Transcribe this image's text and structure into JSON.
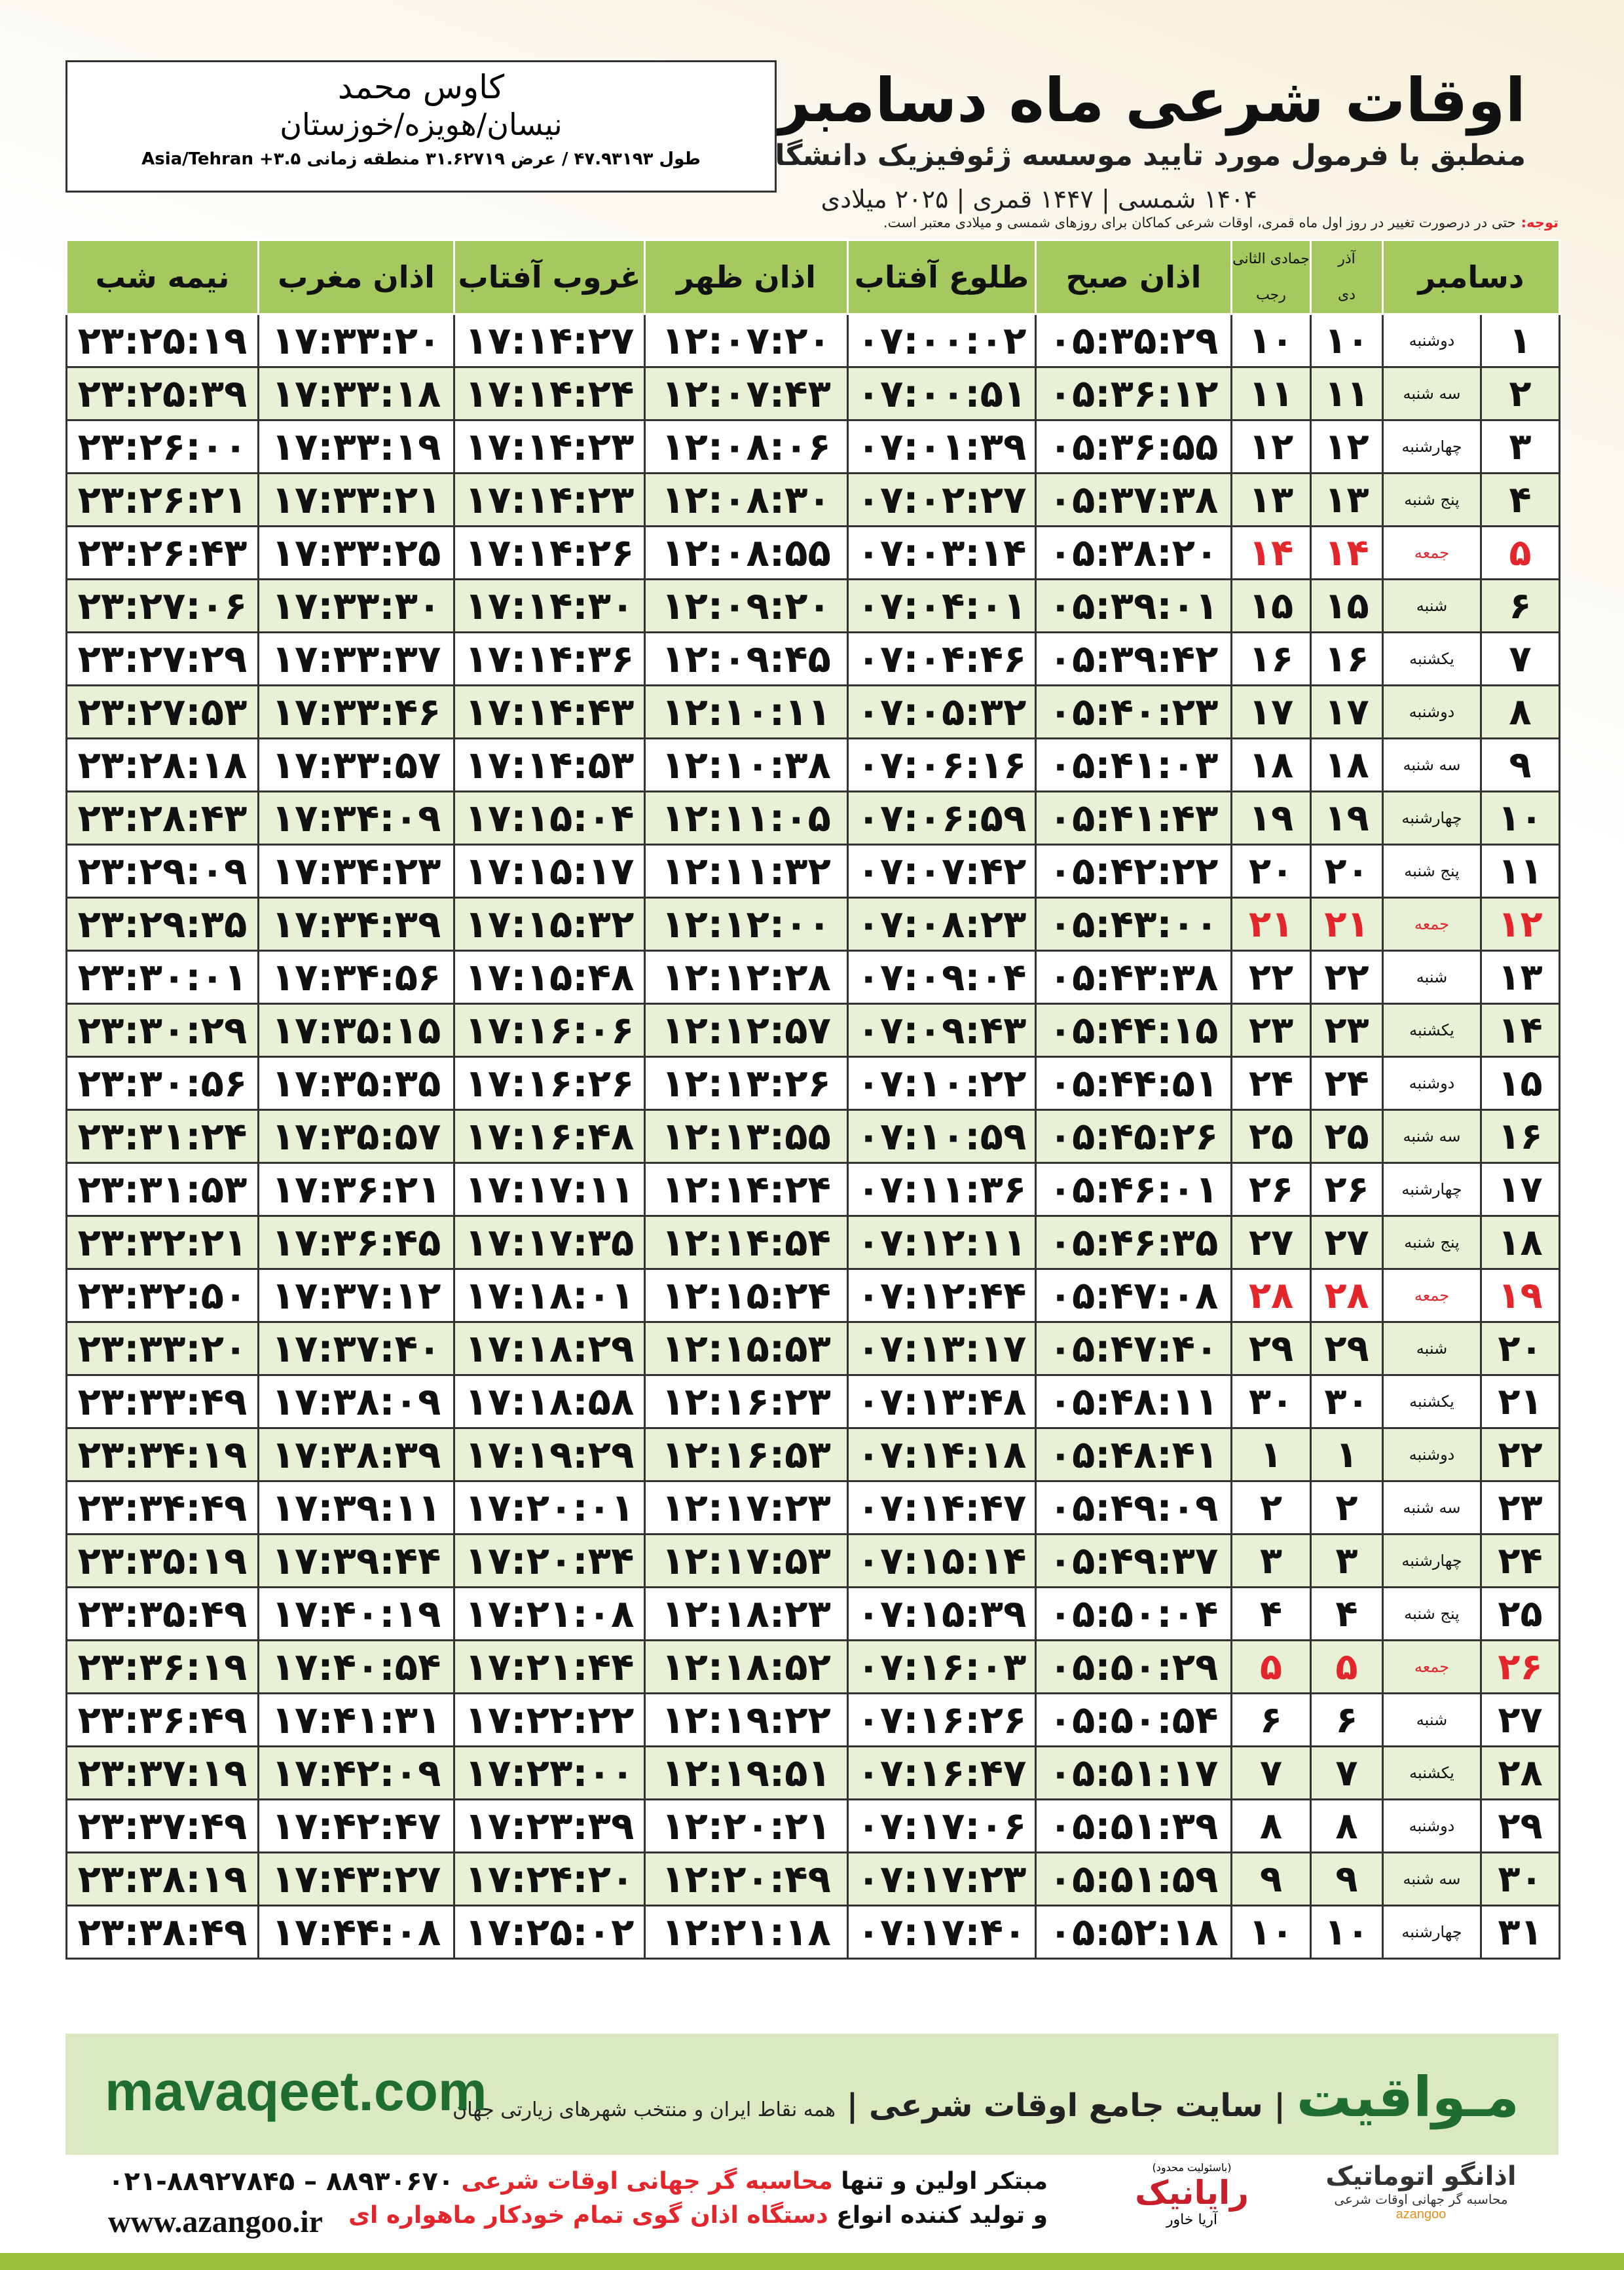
{
  "header": {
    "title": "اوقات شرعی ماه دسامبر",
    "subtitle": "منطبق با فرمول مورد تایید موسسه ژئوفیزیک دانشگاه تهران",
    "dates": "۱۴۰۴ شمسی | ۱۴۴۷ قمری | ۲۰۲۵ میلادی"
  },
  "location": {
    "name": "کاوس محمد",
    "place": "نیسان/هویزه/خوزستان",
    "coords": "طول ۴۷.۹۳۱۹۳ / عرض ۳۱.۶۲۷۱۹ منطقه زمانی ۳.۵+ Asia/Tehran"
  },
  "note": {
    "label": "توجه:",
    "text": "حتی در درصورت تغییر در روز اول ماه قمری، اوقات شرعی کماکان برای روزهای شمسی و میلادی معتبر است."
  },
  "table": {
    "month": "دسامبر",
    "jalali_months": [
      "آذر",
      "دی"
    ],
    "hijri_months": [
      "جمادی الثانی",
      "رجب"
    ],
    "time_headers": [
      "اذان صبح",
      "طلوع آفتاب",
      "اذان ظهر",
      "غروب آفتاب",
      "اذان مغرب",
      "نیمه شب"
    ],
    "rows": [
      {
        "day": "۱",
        "weekday": "دوشنبه",
        "jalali": "۱۰",
        "hijri": "۱۰",
        "times": [
          "۰۵:۳۵:۲۹",
          "۰۷:۰۰:۰۲",
          "۱۲:۰۷:۲۰",
          "۱۷:۱۴:۲۷",
          "۱۷:۳۳:۲۰",
          "۲۳:۲۵:۱۹"
        ],
        "color": "#111111"
      },
      {
        "day": "۲",
        "weekday": "سه شنبه",
        "jalali": "۱۱",
        "hijri": "۱۱",
        "times": [
          "۰۵:۳۶:۱۲",
          "۰۷:۰۰:۵۱",
          "۱۲:۰۷:۴۳",
          "۱۷:۱۴:۲۴",
          "۱۷:۳۳:۱۸",
          "۲۳:۲۵:۳۹"
        ],
        "color": "#111111"
      },
      {
        "day": "۳",
        "weekday": "چهارشنبه",
        "jalali": "۱۲",
        "hijri": "۱۲",
        "times": [
          "۰۵:۳۶:۵۵",
          "۰۷:۰۱:۳۹",
          "۱۲:۰۸:۰۶",
          "۱۷:۱۴:۲۳",
          "۱۷:۳۳:۱۹",
          "۲۳:۲۶:۰۰"
        ],
        "color": "#111111"
      },
      {
        "day": "۴",
        "weekday": "پنج شنبه",
        "jalali": "۱۳",
        "hijri": "۱۳",
        "times": [
          "۰۵:۳۷:۳۸",
          "۰۷:۰۲:۲۷",
          "۱۲:۰۸:۳۰",
          "۱۷:۱۴:۲۳",
          "۱۷:۳۳:۲۱",
          "۲۳:۲۶:۲۱"
        ],
        "color": "#111111"
      },
      {
        "day": "۵",
        "weekday": "جمعه",
        "jalali": "۱۴",
        "hijri": "۱۴",
        "times": [
          "۰۵:۳۸:۲۰",
          "۰۷:۰۳:۱۴",
          "۱۲:۰۸:۵۵",
          "۱۷:۱۴:۲۶",
          "۱۷:۳۳:۲۵",
          "۲۳:۲۶:۴۳"
        ],
        "color": "#e3262b"
      },
      {
        "day": "۶",
        "weekday": "شنبه",
        "jalali": "۱۵",
        "hijri": "۱۵",
        "times": [
          "۰۵:۳۹:۰۱",
          "۰۷:۰۴:۰۱",
          "۱۲:۰۹:۲۰",
          "۱۷:۱۴:۳۰",
          "۱۷:۳۳:۳۰",
          "۲۳:۲۷:۰۶"
        ],
        "color": "#111111"
      },
      {
        "day": "۷",
        "weekday": "یکشنبه",
        "jalali": "۱۶",
        "hijri": "۱۶",
        "times": [
          "۰۵:۳۹:۴۲",
          "۰۷:۰۴:۴۶",
          "۱۲:۰۹:۴۵",
          "۱۷:۱۴:۳۶",
          "۱۷:۳۳:۳۷",
          "۲۳:۲۷:۲۹"
        ],
        "color": "#111111"
      },
      {
        "day": "۸",
        "weekday": "دوشنبه",
        "jalali": "۱۷",
        "hijri": "۱۷",
        "times": [
          "۰۵:۴۰:۲۳",
          "۰۷:۰۵:۳۲",
          "۱۲:۱۰:۱۱",
          "۱۷:۱۴:۴۳",
          "۱۷:۳۳:۴۶",
          "۲۳:۲۷:۵۳"
        ],
        "color": "#111111"
      },
      {
        "day": "۹",
        "weekday": "سه شنبه",
        "jalali": "۱۸",
        "hijri": "۱۸",
        "times": [
          "۰۵:۴۱:۰۳",
          "۰۷:۰۶:۱۶",
          "۱۲:۱۰:۳۸",
          "۱۷:۱۴:۵۳",
          "۱۷:۳۳:۵۷",
          "۲۳:۲۸:۱۸"
        ],
        "color": "#111111"
      },
      {
        "day": "۱۰",
        "weekday": "چهارشنبه",
        "jalali": "۱۹",
        "hijri": "۱۹",
        "times": [
          "۰۵:۴۱:۴۳",
          "۰۷:۰۶:۵۹",
          "۱۲:۱۱:۰۵",
          "۱۷:۱۵:۰۴",
          "۱۷:۳۴:۰۹",
          "۲۳:۲۸:۴۳"
        ],
        "color": "#111111"
      },
      {
        "day": "۱۱",
        "weekday": "پنج شنبه",
        "jalali": "۲۰",
        "hijri": "۲۰",
        "times": [
          "۰۵:۴۲:۲۲",
          "۰۷:۰۷:۴۲",
          "۱۲:۱۱:۳۲",
          "۱۷:۱۵:۱۷",
          "۱۷:۳۴:۲۳",
          "۲۳:۲۹:۰۹"
        ],
        "color": "#111111"
      },
      {
        "day": "۱۲",
        "weekday": "جمعه",
        "jalali": "۲۱",
        "hijri": "۲۱",
        "times": [
          "۰۵:۴۳:۰۰",
          "۰۷:۰۸:۲۳",
          "۱۲:۱۲:۰۰",
          "۱۷:۱۵:۳۲",
          "۱۷:۳۴:۳۹",
          "۲۳:۲۹:۳۵"
        ],
        "color": "#e3262b"
      },
      {
        "day": "۱۳",
        "weekday": "شنبه",
        "jalali": "۲۲",
        "hijri": "۲۲",
        "times": [
          "۰۵:۴۳:۳۸",
          "۰۷:۰۹:۰۴",
          "۱۲:۱۲:۲۸",
          "۱۷:۱۵:۴۸",
          "۱۷:۳۴:۵۶",
          "۲۳:۳۰:۰۱"
        ],
        "color": "#111111"
      },
      {
        "day": "۱۴",
        "weekday": "یکشنبه",
        "jalali": "۲۳",
        "hijri": "۲۳",
        "times": [
          "۰۵:۴۴:۱۵",
          "۰۷:۰۹:۴۳",
          "۱۲:۱۲:۵۷",
          "۱۷:۱۶:۰۶",
          "۱۷:۳۵:۱۵",
          "۲۳:۳۰:۲۹"
        ],
        "color": "#111111"
      },
      {
        "day": "۱۵",
        "weekday": "دوشنبه",
        "jalali": "۲۴",
        "hijri": "۲۴",
        "times": [
          "۰۵:۴۴:۵۱",
          "۰۷:۱۰:۲۲",
          "۱۲:۱۳:۲۶",
          "۱۷:۱۶:۲۶",
          "۱۷:۳۵:۳۵",
          "۲۳:۳۰:۵۶"
        ],
        "color": "#111111"
      },
      {
        "day": "۱۶",
        "weekday": "سه شنبه",
        "jalali": "۲۵",
        "hijri": "۲۵",
        "times": [
          "۰۵:۴۵:۲۶",
          "۰۷:۱۰:۵۹",
          "۱۲:۱۳:۵۵",
          "۱۷:۱۶:۴۸",
          "۱۷:۳۵:۵۷",
          "۲۳:۳۱:۲۴"
        ],
        "color": "#111111"
      },
      {
        "day": "۱۷",
        "weekday": "چهارشنبه",
        "jalali": "۲۶",
        "hijri": "۲۶",
        "times": [
          "۰۵:۴۶:۰۱",
          "۰۷:۱۱:۳۶",
          "۱۲:۱۴:۲۴",
          "۱۷:۱۷:۱۱",
          "۱۷:۳۶:۲۱",
          "۲۳:۳۱:۵۳"
        ],
        "color": "#111111"
      },
      {
        "day": "۱۸",
        "weekday": "پنج شنبه",
        "jalali": "۲۷",
        "hijri": "۲۷",
        "times": [
          "۰۵:۴۶:۳۵",
          "۰۷:۱۲:۱۱",
          "۱۲:۱۴:۵۴",
          "۱۷:۱۷:۳۵",
          "۱۷:۳۶:۴۵",
          "۲۳:۳۲:۲۱"
        ],
        "color": "#111111"
      },
      {
        "day": "۱۹",
        "weekday": "جمعه",
        "jalali": "۲۸",
        "hijri": "۲۸",
        "times": [
          "۰۵:۴۷:۰۸",
          "۰۷:۱۲:۴۴",
          "۱۲:۱۵:۲۴",
          "۱۷:۱۸:۰۱",
          "۱۷:۳۷:۱۲",
          "۲۳:۳۲:۵۰"
        ],
        "color": "#e3262b"
      },
      {
        "day": "۲۰",
        "weekday": "شنبه",
        "jalali": "۲۹",
        "hijri": "۲۹",
        "times": [
          "۰۵:۴۷:۴۰",
          "۰۷:۱۳:۱۷",
          "۱۲:۱۵:۵۳",
          "۱۷:۱۸:۲۹",
          "۱۷:۳۷:۴۰",
          "۲۳:۳۳:۲۰"
        ],
        "color": "#111111"
      },
      {
        "day": "۲۱",
        "weekday": "یکشنبه",
        "jalali": "۳۰",
        "hijri": "۳۰",
        "times": [
          "۰۵:۴۸:۱۱",
          "۰۷:۱۳:۴۸",
          "۱۲:۱۶:۲۳",
          "۱۷:۱۸:۵۸",
          "۱۷:۳۸:۰۹",
          "۲۳:۳۳:۴۹"
        ],
        "color": "#111111"
      },
      {
        "day": "۲۲",
        "weekday": "دوشنبه",
        "jalali": "۱",
        "hijri": "۱",
        "times": [
          "۰۵:۴۸:۴۱",
          "۰۷:۱۴:۱۸",
          "۱۲:۱۶:۵۳",
          "۱۷:۱۹:۲۹",
          "۱۷:۳۸:۳۹",
          "۲۳:۳۴:۱۹"
        ],
        "color": "#111111"
      },
      {
        "day": "۲۳",
        "weekday": "سه شنبه",
        "jalali": "۲",
        "hijri": "۲",
        "times": [
          "۰۵:۴۹:۰۹",
          "۰۷:۱۴:۴۷",
          "۱۲:۱۷:۲۳",
          "۱۷:۲۰:۰۱",
          "۱۷:۳۹:۱۱",
          "۲۳:۳۴:۴۹"
        ],
        "color": "#111111"
      },
      {
        "day": "۲۴",
        "weekday": "چهارشنبه",
        "jalali": "۳",
        "hijri": "۳",
        "times": [
          "۰۵:۴۹:۳۷",
          "۰۷:۱۵:۱۴",
          "۱۲:۱۷:۵۳",
          "۱۷:۲۰:۳۴",
          "۱۷:۳۹:۴۴",
          "۲۳:۳۵:۱۹"
        ],
        "color": "#111111"
      },
      {
        "day": "۲۵",
        "weekday": "پنج شنبه",
        "jalali": "۴",
        "hijri": "۴",
        "times": [
          "۰۵:۵۰:۰۴",
          "۰۷:۱۵:۳۹",
          "۱۲:۱۸:۲۳",
          "۱۷:۲۱:۰۸",
          "۱۷:۴۰:۱۹",
          "۲۳:۳۵:۴۹"
        ],
        "color": "#111111"
      },
      {
        "day": "۲۶",
        "weekday": "جمعه",
        "jalali": "۵",
        "hijri": "۵",
        "times": [
          "۰۵:۵۰:۲۹",
          "۰۷:۱۶:۰۳",
          "۱۲:۱۸:۵۲",
          "۱۷:۲۱:۴۴",
          "۱۷:۴۰:۵۴",
          "۲۳:۳۶:۱۹"
        ],
        "color": "#e3262b"
      },
      {
        "day": "۲۷",
        "weekday": "شنبه",
        "jalali": "۶",
        "hijri": "۶",
        "times": [
          "۰۵:۵۰:۵۴",
          "۰۷:۱۶:۲۶",
          "۱۲:۱۹:۲۲",
          "۱۷:۲۲:۲۲",
          "۱۷:۴۱:۳۱",
          "۲۳:۳۶:۴۹"
        ],
        "color": "#111111"
      },
      {
        "day": "۲۸",
        "weekday": "یکشنبه",
        "jalali": "۷",
        "hijri": "۷",
        "times": [
          "۰۵:۵۱:۱۷",
          "۰۷:۱۶:۴۷",
          "۱۲:۱۹:۵۱",
          "۱۷:۲۳:۰۰",
          "۱۷:۴۲:۰۹",
          "۲۳:۳۷:۱۹"
        ],
        "color": "#111111"
      },
      {
        "day": "۲۹",
        "weekday": "دوشنبه",
        "jalali": "۸",
        "hijri": "۸",
        "times": [
          "۰۵:۵۱:۳۹",
          "۰۷:۱۷:۰۶",
          "۱۲:۲۰:۲۱",
          "۱۷:۲۳:۳۹",
          "۱۷:۴۲:۴۷",
          "۲۳:۳۷:۴۹"
        ],
        "color": "#111111"
      },
      {
        "day": "۳۰",
        "weekday": "سه شنبه",
        "jalali": "۹",
        "hijri": "۹",
        "times": [
          "۰۵:۵۱:۵۹",
          "۰۷:۱۷:۲۳",
          "۱۲:۲۰:۴۹",
          "۱۷:۲۴:۲۰",
          "۱۷:۴۳:۲۷",
          "۲۳:۳۸:۱۹"
        ],
        "color": "#111111"
      },
      {
        "day": "۳۱",
        "weekday": "چهارشنبه",
        "jalali": "۱۰",
        "hijri": "۱۰",
        "times": [
          "۰۵:۵۲:۱۸",
          "۰۷:۱۷:۴۰",
          "۱۲:۲۱:۱۸",
          "۱۷:۲۵:۰۲",
          "۱۷:۴۴:۰۸",
          "۲۳:۳۸:۴۹"
        ],
        "color": "#111111"
      }
    ]
  },
  "banner": {
    "site": "mavaqeet.com",
    "brand": "مـواقیت",
    "slogan": "سایت جامع اوقات شرعی",
    "coverage": "همه نقاط ایران و منتخب شهرهای زیارتی جهان"
  },
  "footer": {
    "phones": "۰۲۱-۸۸۹۲۷۸۴۵ – ۸۸۹۳۰۶۷۰",
    "website": "www.azangoo.ir",
    "line1": [
      "مبتکر اولین و تنها",
      "محاسبه گر جهانی اوقات شرعی"
    ],
    "line2": [
      "و تولید کننده انواع",
      "دستگاه اذان گوی تمام خودکار ماهواره ای"
    ],
    "logo1": {
      "note": "(باسئولیت محدود)",
      "name": "رایانیک",
      "sub": "آریا خاور"
    },
    "logo2": {
      "name": "اذانگو اتوماتیک",
      "sub": "محاسبه گر جهانی اوقات شرعی",
      "latin": "azangoo"
    }
  }
}
